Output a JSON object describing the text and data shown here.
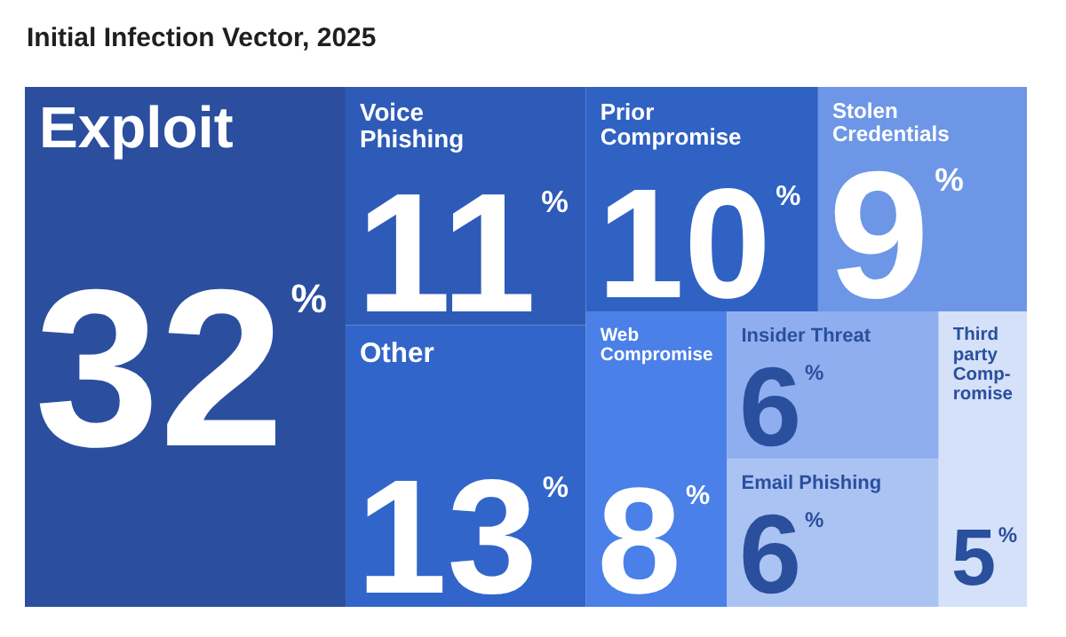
{
  "chart_data": {
    "type": "other",
    "title": "Initial Infection Vector, 2025",
    "categories": [
      "Exploit",
      "Voice\nPhishing",
      "Other",
      "Prior\nCompromise",
      "Stolen\nCredentials",
      "Web\nCompromise",
      "Insider Threat",
      "Email Phishing",
      "Third\nparty\nComp-\nromise"
    ],
    "values": [
      32,
      11,
      13,
      10,
      9,
      8,
      6,
      6,
      5
    ],
    "value_labels": [
      "32$^{%}$",
      "11$^{%}$",
      "13$^{%}$",
      "10$^{%}$",
      "9$^{%}$",
      "8$^{%}$",
      "6$^{%}$",
      "6$^{%}$",
      "5$^{%}$"
    ],
    "colors": [
      "#2b4f9e",
      "#2e5bb8",
      "#3265c9",
      "#3062c4",
      "#6d96e6",
      "#4a80e8",
      "#8eaef0",
      "#aac3f3",
      "#d4e1f8"
    ]
  }
}
